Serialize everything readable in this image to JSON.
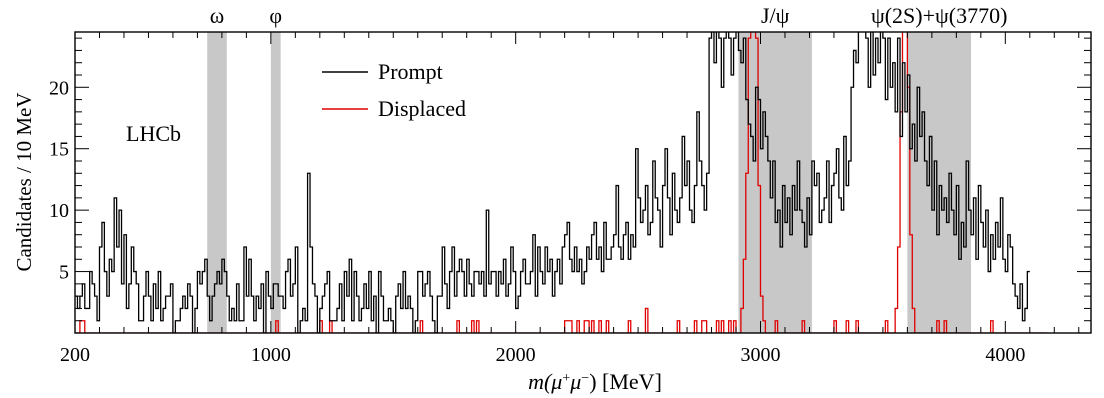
{
  "chart_data": {
    "type": "line",
    "xlabel_main": "m(",
    "xlabel_mu": "μ",
    "xlabel_plus": "+",
    "xlabel_minus": "−",
    "xlabel_close": ")",
    "xlabel_unit": " [MeV]",
    "ylabel": "Candidates / 10 MeV",
    "xlim": [
      200,
      4350
    ],
    "ylim": [
      0,
      24.5
    ],
    "x_ticks": [
      200,
      1000,
      2000,
      3000,
      4000
    ],
    "x_tick_labels": [
      "200",
      "1000",
      "2000",
      "3000",
      "4000"
    ],
    "y_ticks": [
      5,
      10,
      15,
      20
    ],
    "y_tick_labels": [
      "5",
      "10",
      "15",
      "20"
    ],
    "watermark": "LHCb",
    "legend": {
      "placement": "top-center",
      "entries": [
        {
          "label": "Prompt",
          "color": "#000000"
        },
        {
          "label": "Displaced",
          "color": "#e00000"
        }
      ]
    },
    "vetoed_regions": [
      {
        "label": "ω",
        "range": [
          740,
          820
        ]
      },
      {
        "label": "φ",
        "range": [
          1000,
          1040
        ]
      },
      {
        "label": "J/ψ",
        "range": [
          2910,
          3210
        ]
      },
      {
        "label": "ψ(2S)+ψ(3770)",
        "range": [
          3600,
          3860
        ]
      }
    ],
    "bin_width": 10,
    "series": [
      {
        "name": "Prompt",
        "color": "#000000",
        "x_start": 200,
        "values": [
          3,
          2,
          3,
          4,
          2,
          2,
          5,
          4,
          3,
          1,
          7,
          9,
          5,
          3,
          6,
          5,
          11,
          7,
          10,
          4,
          8,
          2,
          4,
          7,
          5,
          4,
          1,
          1,
          3,
          5,
          3,
          1,
          4,
          2,
          5,
          1,
          2,
          3,
          3,
          4,
          0,
          1,
          1,
          2,
          3,
          2,
          4,
          3,
          0,
          2,
          5,
          4,
          5,
          6,
          3,
          1,
          3,
          4,
          5,
          4,
          6,
          5,
          3,
          1,
          2,
          1,
          4,
          1,
          1,
          7,
          3,
          6,
          3,
          1,
          3,
          2,
          4,
          0,
          5,
          3,
          2,
          4,
          4,
          3,
          3,
          2,
          5,
          6,
          3,
          4,
          7,
          0,
          1,
          2,
          1,
          13,
          7,
          4,
          3,
          0,
          2,
          3,
          4,
          5,
          1,
          1,
          1,
          2,
          4,
          1,
          5,
          3,
          6,
          1,
          5,
          3,
          1,
          2,
          4,
          2,
          5,
          1,
          3,
          0,
          5,
          3,
          1,
          1,
          2,
          1,
          0,
          3,
          4,
          2,
          5,
          2,
          3,
          2,
          0,
          1,
          5,
          5,
          3,
          4,
          5,
          3,
          1,
          0,
          3,
          3,
          7,
          4,
          2,
          5,
          7,
          3,
          5,
          6,
          5,
          3,
          6,
          4,
          3,
          5,
          5,
          4,
          5,
          3,
          10,
          4,
          5,
          5,
          3,
          5,
          4,
          6,
          3,
          4,
          7,
          5,
          2,
          3,
          5,
          6,
          4,
          4,
          5,
          8,
          3,
          7,
          5,
          4,
          7,
          5,
          6,
          3,
          5,
          6,
          4,
          7,
          8,
          9,
          6,
          5,
          7,
          5,
          6,
          4,
          5,
          7,
          6,
          8,
          9,
          6,
          7,
          5,
          9,
          6,
          6,
          7,
          8,
          12,
          7,
          6,
          8,
          9,
          6,
          8,
          7,
          15,
          11,
          9,
          10,
          12,
          8,
          9,
          14,
          11,
          10,
          7,
          12,
          15,
          11,
          8,
          13,
          10,
          9,
          11,
          16,
          12,
          14,
          10,
          9,
          12,
          18,
          14,
          12,
          10,
          13,
          24,
          25,
          22,
          28,
          24,
          20,
          24,
          26,
          24,
          21,
          24,
          26,
          23,
          22,
          24,
          19,
          17,
          16,
          14,
          20,
          19,
          15,
          18,
          16,
          14,
          11,
          14,
          9,
          10,
          7,
          12,
          9,
          11,
          8,
          12,
          10,
          14,
          10,
          9,
          7,
          11,
          8,
          14,
          12,
          13,
          9,
          10,
          11,
          14,
          9,
          12,
          13,
          15,
          11,
          10,
          16,
          12,
          14,
          20,
          23,
          22,
          26,
          25,
          28,
          24,
          20,
          25,
          21,
          24,
          22,
          26,
          24,
          19,
          24,
          20,
          22,
          18,
          24,
          16,
          22,
          18,
          21,
          15,
          17,
          14,
          20,
          16,
          18,
          14,
          12,
          16,
          10,
          14,
          8,
          12,
          10,
          11,
          9,
          13,
          10,
          8,
          12,
          6,
          9,
          7,
          14,
          10,
          8,
          11,
          6,
          12,
          9,
          7,
          10,
          5,
          8,
          6,
          9,
          7,
          11,
          6,
          5,
          8,
          7,
          4,
          3,
          2,
          4,
          1,
          2,
          5
        ]
      },
      {
        "name": "Displaced",
        "color": "#e00000",
        "x_start": 200,
        "values": [
          0,
          0,
          1,
          1,
          0,
          0,
          0,
          0,
          0,
          0,
          0,
          0,
          0,
          0,
          0,
          0,
          0,
          0,
          0,
          0,
          0,
          0,
          0,
          0,
          0,
          0,
          0,
          0,
          0,
          0,
          0,
          0,
          0,
          0,
          0,
          0,
          0,
          0,
          0,
          0,
          0,
          0,
          0,
          0,
          0,
          0,
          0,
          0,
          0,
          0,
          0,
          0,
          0,
          0,
          0,
          0,
          0,
          0,
          0,
          0,
          0,
          0,
          0,
          0,
          0,
          0,
          0,
          0,
          0,
          0,
          0,
          0,
          0,
          0,
          0,
          0,
          0,
          0,
          0,
          0,
          0,
          0,
          1,
          0,
          0,
          0,
          0,
          0,
          0,
          0,
          0,
          0,
          0,
          0,
          0,
          0,
          0,
          0,
          0,
          0,
          1,
          0,
          0,
          0,
          1,
          0,
          0,
          0,
          0,
          0,
          0,
          0,
          0,
          0,
          0,
          0,
          0,
          0,
          0,
          0,
          0,
          0,
          0,
          0,
          0,
          0,
          0,
          0,
          0,
          0,
          0,
          0,
          0,
          0,
          0,
          0,
          0,
          0,
          0,
          0,
          0,
          1,
          0,
          0,
          0,
          0,
          0,
          0,
          0,
          0,
          0,
          0,
          0,
          0,
          0,
          0,
          1,
          0,
          0,
          0,
          0,
          0,
          1,
          0,
          1,
          0,
          0,
          0,
          0,
          0,
          0,
          0,
          0,
          0,
          0,
          0,
          0,
          0,
          0,
          0,
          0,
          0,
          0,
          0,
          0,
          0,
          0,
          0,
          0,
          0,
          0,
          0,
          0,
          0,
          0,
          0,
          0,
          0,
          0,
          0,
          1,
          1,
          1,
          0,
          0,
          1,
          0,
          0,
          1,
          1,
          0,
          1,
          0,
          0,
          1,
          0,
          0,
          1,
          0,
          0,
          0,
          0,
          0,
          0,
          0,
          0,
          1,
          0,
          0,
          0,
          0,
          0,
          0,
          2,
          0,
          0,
          0,
          0,
          0,
          0,
          0,
          0,
          0,
          0,
          0,
          0,
          1,
          0,
          0,
          0,
          0,
          0,
          0,
          1,
          0,
          0,
          1,
          1,
          0,
          0,
          0,
          0,
          1,
          0,
          1,
          0,
          0,
          1,
          0,
          1,
          0,
          0,
          2,
          6,
          13,
          24,
          26,
          25,
          24,
          12,
          3,
          1,
          0,
          0,
          0,
          0,
          1,
          0,
          0,
          0,
          0,
          0,
          0,
          0,
          0,
          0,
          0,
          1,
          0,
          0,
          0,
          0,
          0,
          0,
          0,
          0,
          0,
          0,
          0,
          0,
          1,
          0,
          0,
          0,
          0,
          1,
          0,
          0,
          0,
          1,
          0,
          0,
          0,
          0,
          0,
          0,
          0,
          0,
          0,
          0,
          0,
          1,
          0,
          0,
          0,
          2,
          7,
          18,
          25,
          26,
          20,
          8,
          2,
          0,
          0,
          0,
          0,
          0,
          0,
          0,
          0,
          0,
          1,
          0,
          0,
          1,
          0,
          0,
          0,
          0,
          0,
          0,
          0,
          0,
          0,
          0,
          0,
          0,
          0,
          0,
          0,
          0,
          0,
          0,
          1,
          0,
          0,
          0,
          0,
          0,
          0,
          0,
          0,
          0,
          0,
          0,
          0,
          0,
          0,
          0,
          0,
          0,
          0,
          0,
          0,
          0,
          0
        ]
      }
    ]
  }
}
